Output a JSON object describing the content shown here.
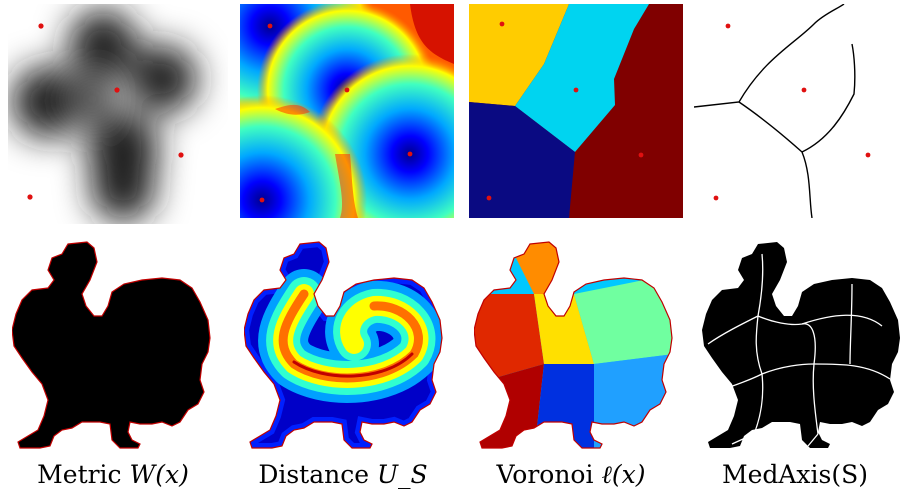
{
  "figure": {
    "captions": [
      {
        "text": "Metric",
        "math": "W(x)"
      },
      {
        "text": "Distance",
        "math": "U_S"
      },
      {
        "text": "Voronoi",
        "math": "ℓ(x)"
      },
      {
        "text": "MedAxis(S)",
        "math": ""
      }
    ]
  },
  "colors": {
    "seed_point": "#e01010",
    "voronoi_yellow": "#ffcc00",
    "voronoi_cyan": "#00d4f0",
    "voronoi_navy": "#0a0a82",
    "voronoi_maroon": "#800000",
    "shape_fill": "#000000",
    "shape_outline": "#c00000",
    "medial_axis": "#ffffff"
  }
}
